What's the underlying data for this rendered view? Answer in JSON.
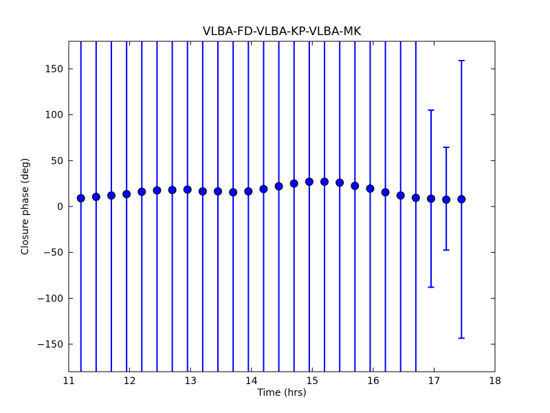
{
  "figure": {
    "title": "VLBA-FD-VLBA-KP-VLBA-MK",
    "xlabel": "Time (hrs)",
    "ylabel": "Closure phase (deg)"
  },
  "chart_data": {
    "type": "scatter",
    "title": "VLBA-FD-VLBA-KP-VLBA-MK",
    "xlabel": "Time (hrs)",
    "ylabel": "Closure phase (deg)",
    "xlim": [
      11,
      18
    ],
    "ylim": [
      -180,
      180
    ],
    "xticks": [
      11,
      12,
      13,
      14,
      15,
      16,
      17,
      18
    ],
    "yticks": [
      -150,
      -100,
      -50,
      0,
      50,
      100,
      150
    ],
    "grid": false,
    "legend": "none",
    "marker_color": "#0000ff",
    "marker_edge_color": "#000000",
    "errorbar_color": "#0000ff",
    "series": [
      {
        "name": "closure-phase",
        "x": [
          11.2,
          11.45,
          11.7,
          11.95,
          12.2,
          12.45,
          12.7,
          12.95,
          13.2,
          13.45,
          13.7,
          13.95,
          14.2,
          14.45,
          14.7,
          14.95,
          15.2,
          15.45,
          15.7,
          15.95,
          16.2,
          16.45,
          16.7,
          16.95,
          17.2,
          17.45
        ],
        "y": [
          9,
          10.5,
          12,
          13.5,
          16,
          17.5,
          18,
          18.5,
          16.5,
          16.5,
          15.5,
          16.5,
          19,
          22,
          25,
          27,
          27,
          26,
          22.5,
          19.5,
          15.5,
          12,
          9.5,
          8.5,
          7.5,
          8
        ],
        "err_hi": [
          180,
          180,
          180,
          180,
          180,
          180,
          180,
          180,
          180,
          180,
          180,
          180,
          180,
          180,
          180,
          180,
          180,
          180,
          180,
          180,
          180,
          180,
          180,
          105,
          64.5,
          159
        ],
        "err_lo": [
          -180,
          -180,
          -180,
          -180,
          -180,
          -180,
          -180,
          -180,
          -180,
          -180,
          -180,
          -180,
          -180,
          -180,
          -180,
          -180,
          -180,
          -180,
          -180,
          -180,
          -180,
          -180,
          -180,
          -88,
          -47.5,
          -143.5
        ],
        "clipped": [
          true,
          true,
          true,
          true,
          true,
          true,
          true,
          true,
          true,
          true,
          true,
          true,
          true,
          true,
          true,
          true,
          true,
          true,
          true,
          true,
          true,
          true,
          true,
          false,
          false,
          false
        ]
      }
    ]
  }
}
